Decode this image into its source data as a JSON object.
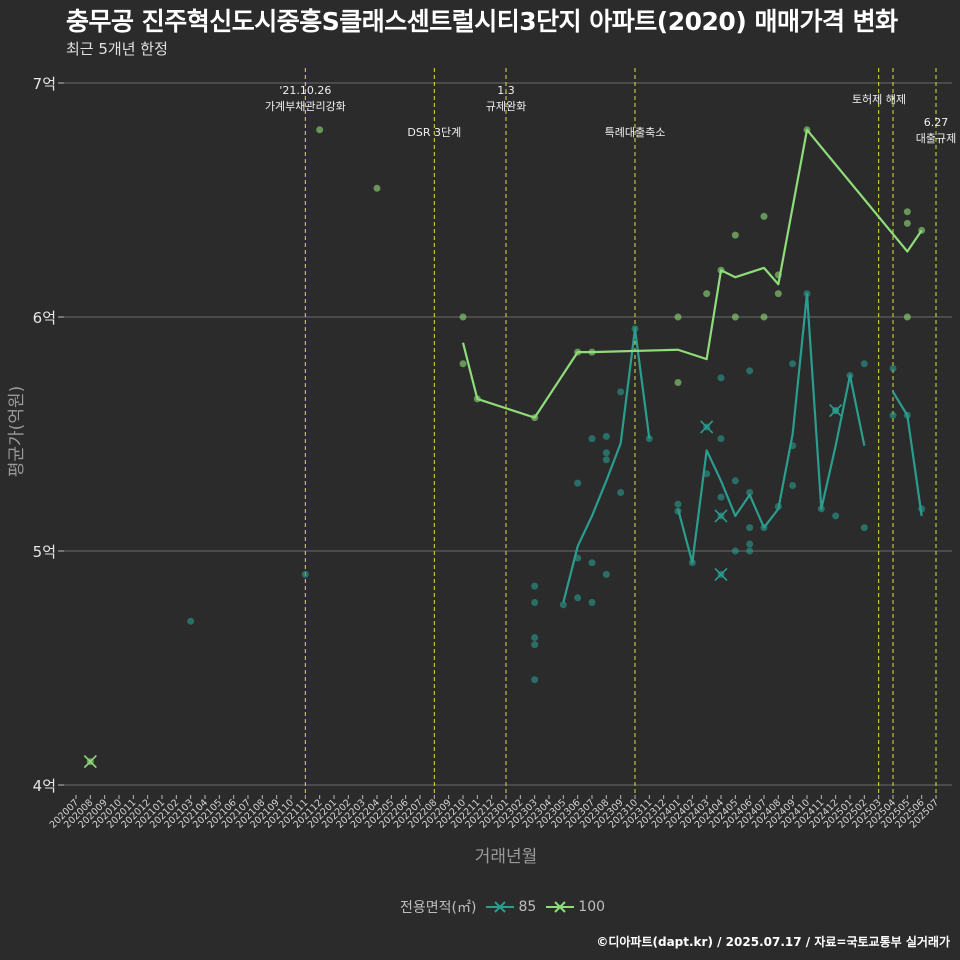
{
  "title": "충무공 진주혁신도시중흥S클래스센트럴시티3단지 아파트(2020) 매매가격 변화",
  "subtitle": "최근 5개년 한정",
  "caption": "©디아파트(dapt.kr) / 2025.07.17 / 자료=국토교통부 실거래가",
  "colors": {
    "s85": "#2a9d8f",
    "s100": "#8fdc7a",
    "event": "#d8e23c",
    "grid": "#6b6b6b"
  },
  "chart_data": {
    "type": "line",
    "xlabel": "거래년월",
    "ylabel": "평균가(억원)",
    "ylim": [
      4,
      7
    ],
    "y_ticks": [
      4,
      5,
      6,
      7
    ],
    "y_tick_labels": [
      "4억",
      "5억",
      "6억",
      "7억"
    ],
    "categories": [
      "202007",
      "202008",
      "202009",
      "202010",
      "202011",
      "202012",
      "202101",
      "202102",
      "202103",
      "202104",
      "202105",
      "202106",
      "202107",
      "202108",
      "202109",
      "202110",
      "202111",
      "202112",
      "202201",
      "202202",
      "202203",
      "202204",
      "202205",
      "202206",
      "202207",
      "202208",
      "202209",
      "202210",
      "202211",
      "202212",
      "202301",
      "202302",
      "202303",
      "202304",
      "202305",
      "202306",
      "202307",
      "202308",
      "202309",
      "202310",
      "202311",
      "202312",
      "202401",
      "202402",
      "202403",
      "202404",
      "202405",
      "202406",
      "202407",
      "202408",
      "202409",
      "202410",
      "202411",
      "202412",
      "202501",
      "202502",
      "202503",
      "202504",
      "202505",
      "202506",
      "202507"
    ],
    "legend_title": "전용면적(㎡)",
    "series": [
      {
        "name": "85",
        "color": "#2a9d8f",
        "line": [
          [
            "202305",
            4.78
          ],
          [
            "202306",
            5.02
          ],
          [
            "202307",
            5.15
          ],
          [
            "202308",
            5.3
          ],
          [
            "202309",
            5.46
          ],
          [
            "202310",
            5.95
          ],
          [
            "202311",
            5.48
          ],
          null,
          [
            "202401",
            5.18
          ],
          [
            "202402",
            4.95
          ],
          [
            "202403",
            5.43
          ],
          [
            "202404",
            5.3
          ],
          [
            "202405",
            5.15
          ],
          [
            "202406",
            5.24
          ],
          [
            "202407",
            5.1
          ],
          [
            "202408",
            5.18
          ],
          [
            "202409",
            5.5
          ],
          [
            "202410",
            6.1
          ],
          [
            "202411",
            5.18
          ],
          [
            "202412",
            5.45
          ],
          [
            "202501",
            5.75
          ],
          [
            "202502",
            5.45
          ],
          null,
          [
            "202504",
            5.68
          ],
          [
            "202505",
            5.58
          ],
          [
            "202506",
            5.15
          ]
        ],
        "points": [
          [
            "202103",
            4.7
          ],
          [
            "202111",
            4.9
          ],
          [
            "202303",
            4.85
          ],
          [
            "202303",
            4.78
          ],
          [
            "202303",
            4.63
          ],
          [
            "202303",
            4.6
          ],
          [
            "202303",
            4.45
          ],
          [
            "202305",
            4.77
          ],
          [
            "202306",
            4.97
          ],
          [
            "202306",
            4.8
          ],
          [
            "202306",
            5.29
          ],
          [
            "202307",
            5.48
          ],
          [
            "202307",
            4.95
          ],
          [
            "202307",
            4.78
          ],
          [
            "202308",
            5.49
          ],
          [
            "202308",
            5.42
          ],
          [
            "202308",
            5.39
          ],
          [
            "202308",
            4.9
          ],
          [
            "202309",
            5.68
          ],
          [
            "202309",
            5.25
          ],
          [
            "202310",
            5.95
          ],
          [
            "202311",
            5.48
          ],
          [
            "202401",
            5.2
          ],
          [
            "202401",
            5.17
          ],
          [
            "202402",
            4.95
          ],
          [
            "202403",
            5.33
          ],
          [
            "202404",
            5.74
          ],
          [
            "202404",
            5.48
          ],
          [
            "202404",
            5.23
          ],
          [
            "202405",
            5.3
          ],
          [
            "202405",
            5.0
          ],
          [
            "202406",
            5.77
          ],
          [
            "202406",
            5.25
          ],
          [
            "202406",
            5.1
          ],
          [
            "202406",
            5.03
          ],
          [
            "202406",
            5.0
          ],
          [
            "202407",
            5.1
          ],
          [
            "202408",
            5.19
          ],
          [
            "202409",
            5.8
          ],
          [
            "202409",
            5.45
          ],
          [
            "202409",
            5.28
          ],
          [
            "202410",
            6.1
          ],
          [
            "202411",
            5.18
          ],
          [
            "202412",
            5.6
          ],
          [
            "202412",
            5.15
          ],
          [
            "202501",
            5.75
          ],
          [
            "202502",
            5.8
          ],
          [
            "202502",
            5.1
          ],
          [
            "202504",
            5.78
          ],
          [
            "202504",
            5.58
          ],
          [
            "202505",
            5.58
          ],
          [
            "202506",
            5.18
          ]
        ],
        "cancelled": [
          [
            "202403",
            5.53
          ],
          [
            "202404",
            5.15
          ],
          [
            "202404",
            4.9
          ],
          [
            "202412",
            5.6
          ]
        ]
      },
      {
        "name": "100",
        "color": "#8fdc7a",
        "line": [
          [
            "202210",
            5.89
          ],
          [
            "202211",
            5.65
          ],
          [
            "202303",
            5.57
          ],
          [
            "202306",
            5.85
          ],
          [
            "202307",
            5.85
          ],
          [
            "202401",
            5.86
          ],
          [
            "202403",
            5.82
          ],
          [
            "202404",
            6.2
          ],
          [
            "202405",
            6.17
          ],
          [
            "202407",
            6.21
          ],
          [
            "202408",
            6.14
          ],
          [
            "202410",
            6.8
          ],
          [
            "202505",
            6.28
          ],
          [
            "202506",
            6.37
          ]
        ],
        "points": [
          [
            "202112",
            6.8
          ],
          [
            "202204",
            6.55
          ],
          [
            "202210",
            6.0
          ],
          [
            "202210",
            5.8
          ],
          [
            "202211",
            5.65
          ],
          [
            "202303",
            5.57
          ],
          [
            "202306",
            5.85
          ],
          [
            "202307",
            5.85
          ],
          [
            "202401",
            6.0
          ],
          [
            "202401",
            5.72
          ],
          [
            "202403",
            6.1
          ],
          [
            "202404",
            6.2
          ],
          [
            "202405",
            6.35
          ],
          [
            "202405",
            6.0
          ],
          [
            "202407",
            6.43
          ],
          [
            "202407",
            6.0
          ],
          [
            "202408",
            6.18
          ],
          [
            "202408",
            6.1
          ],
          [
            "202410",
            6.8
          ],
          [
            "202505",
            6.45
          ],
          [
            "202505",
            6.4
          ],
          [
            "202505",
            6.0
          ],
          [
            "202506",
            6.37
          ]
        ],
        "cancelled": [
          [
            "202008",
            4.1
          ]
        ]
      }
    ],
    "events": [
      {
        "month": "202111",
        "label_line1": "'21.10.26",
        "label_line2": "가계부채관리강화",
        "level": "top"
      },
      {
        "month": "202208",
        "label_line1": "",
        "label_line2": "DSR 3단계",
        "level": "mid"
      },
      {
        "month": "202301",
        "label_line1": "1.3",
        "label_line2": "규제완화",
        "level": "top"
      },
      {
        "month": "202310",
        "label_line1": "",
        "label_line2": "특례대출축소",
        "level": "mid"
      },
      {
        "month": "202503",
        "label_line1": "",
        "label_line2": "",
        "level": "none"
      },
      {
        "month": "202504",
        "label_line1": "",
        "label_line2": "토허제 해제",
        "level": "upper"
      },
      {
        "month": "202507",
        "label_line1": "6.27",
        "label_line2": "대출규제",
        "level": "right"
      }
    ]
  }
}
